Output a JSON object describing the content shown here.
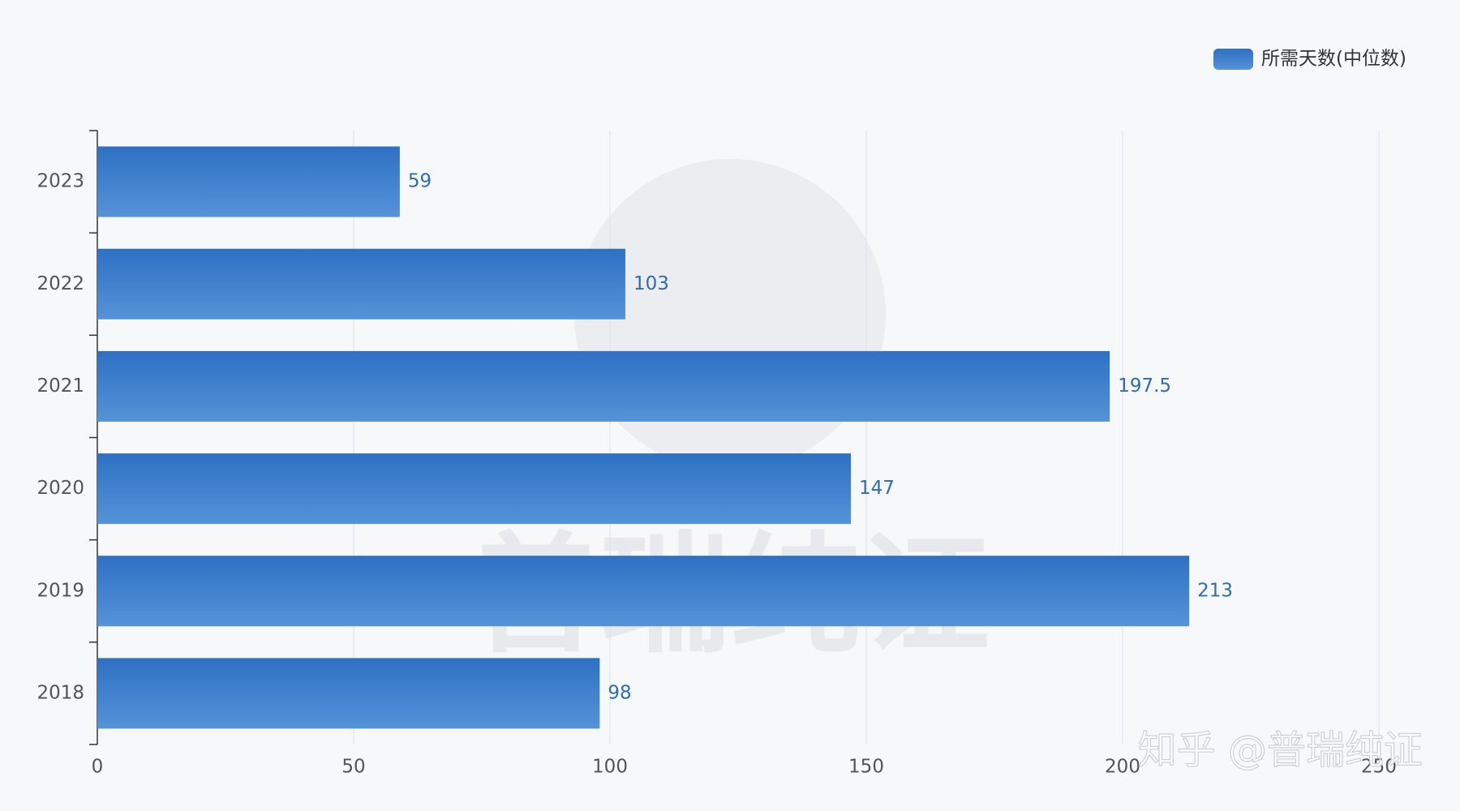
{
  "chart_data": {
    "type": "bar",
    "orientation": "horizontal",
    "categories": [
      "2023",
      "2022",
      "2021",
      "2020",
      "2019",
      "2018"
    ],
    "series": [
      {
        "name": "所需天数(中位数)",
        "color": "#3a7dcc",
        "values": [
          59,
          103,
          197.5,
          147,
          213,
          98
        ]
      }
    ],
    "xlim": [
      0,
      250
    ],
    "xticks": [
      0,
      50,
      100,
      150,
      200,
      250
    ],
    "grid": true,
    "legend": "top-right",
    "background_watermark": "普瑞纯证",
    "watermark": "知乎 @普瑞纯证"
  }
}
